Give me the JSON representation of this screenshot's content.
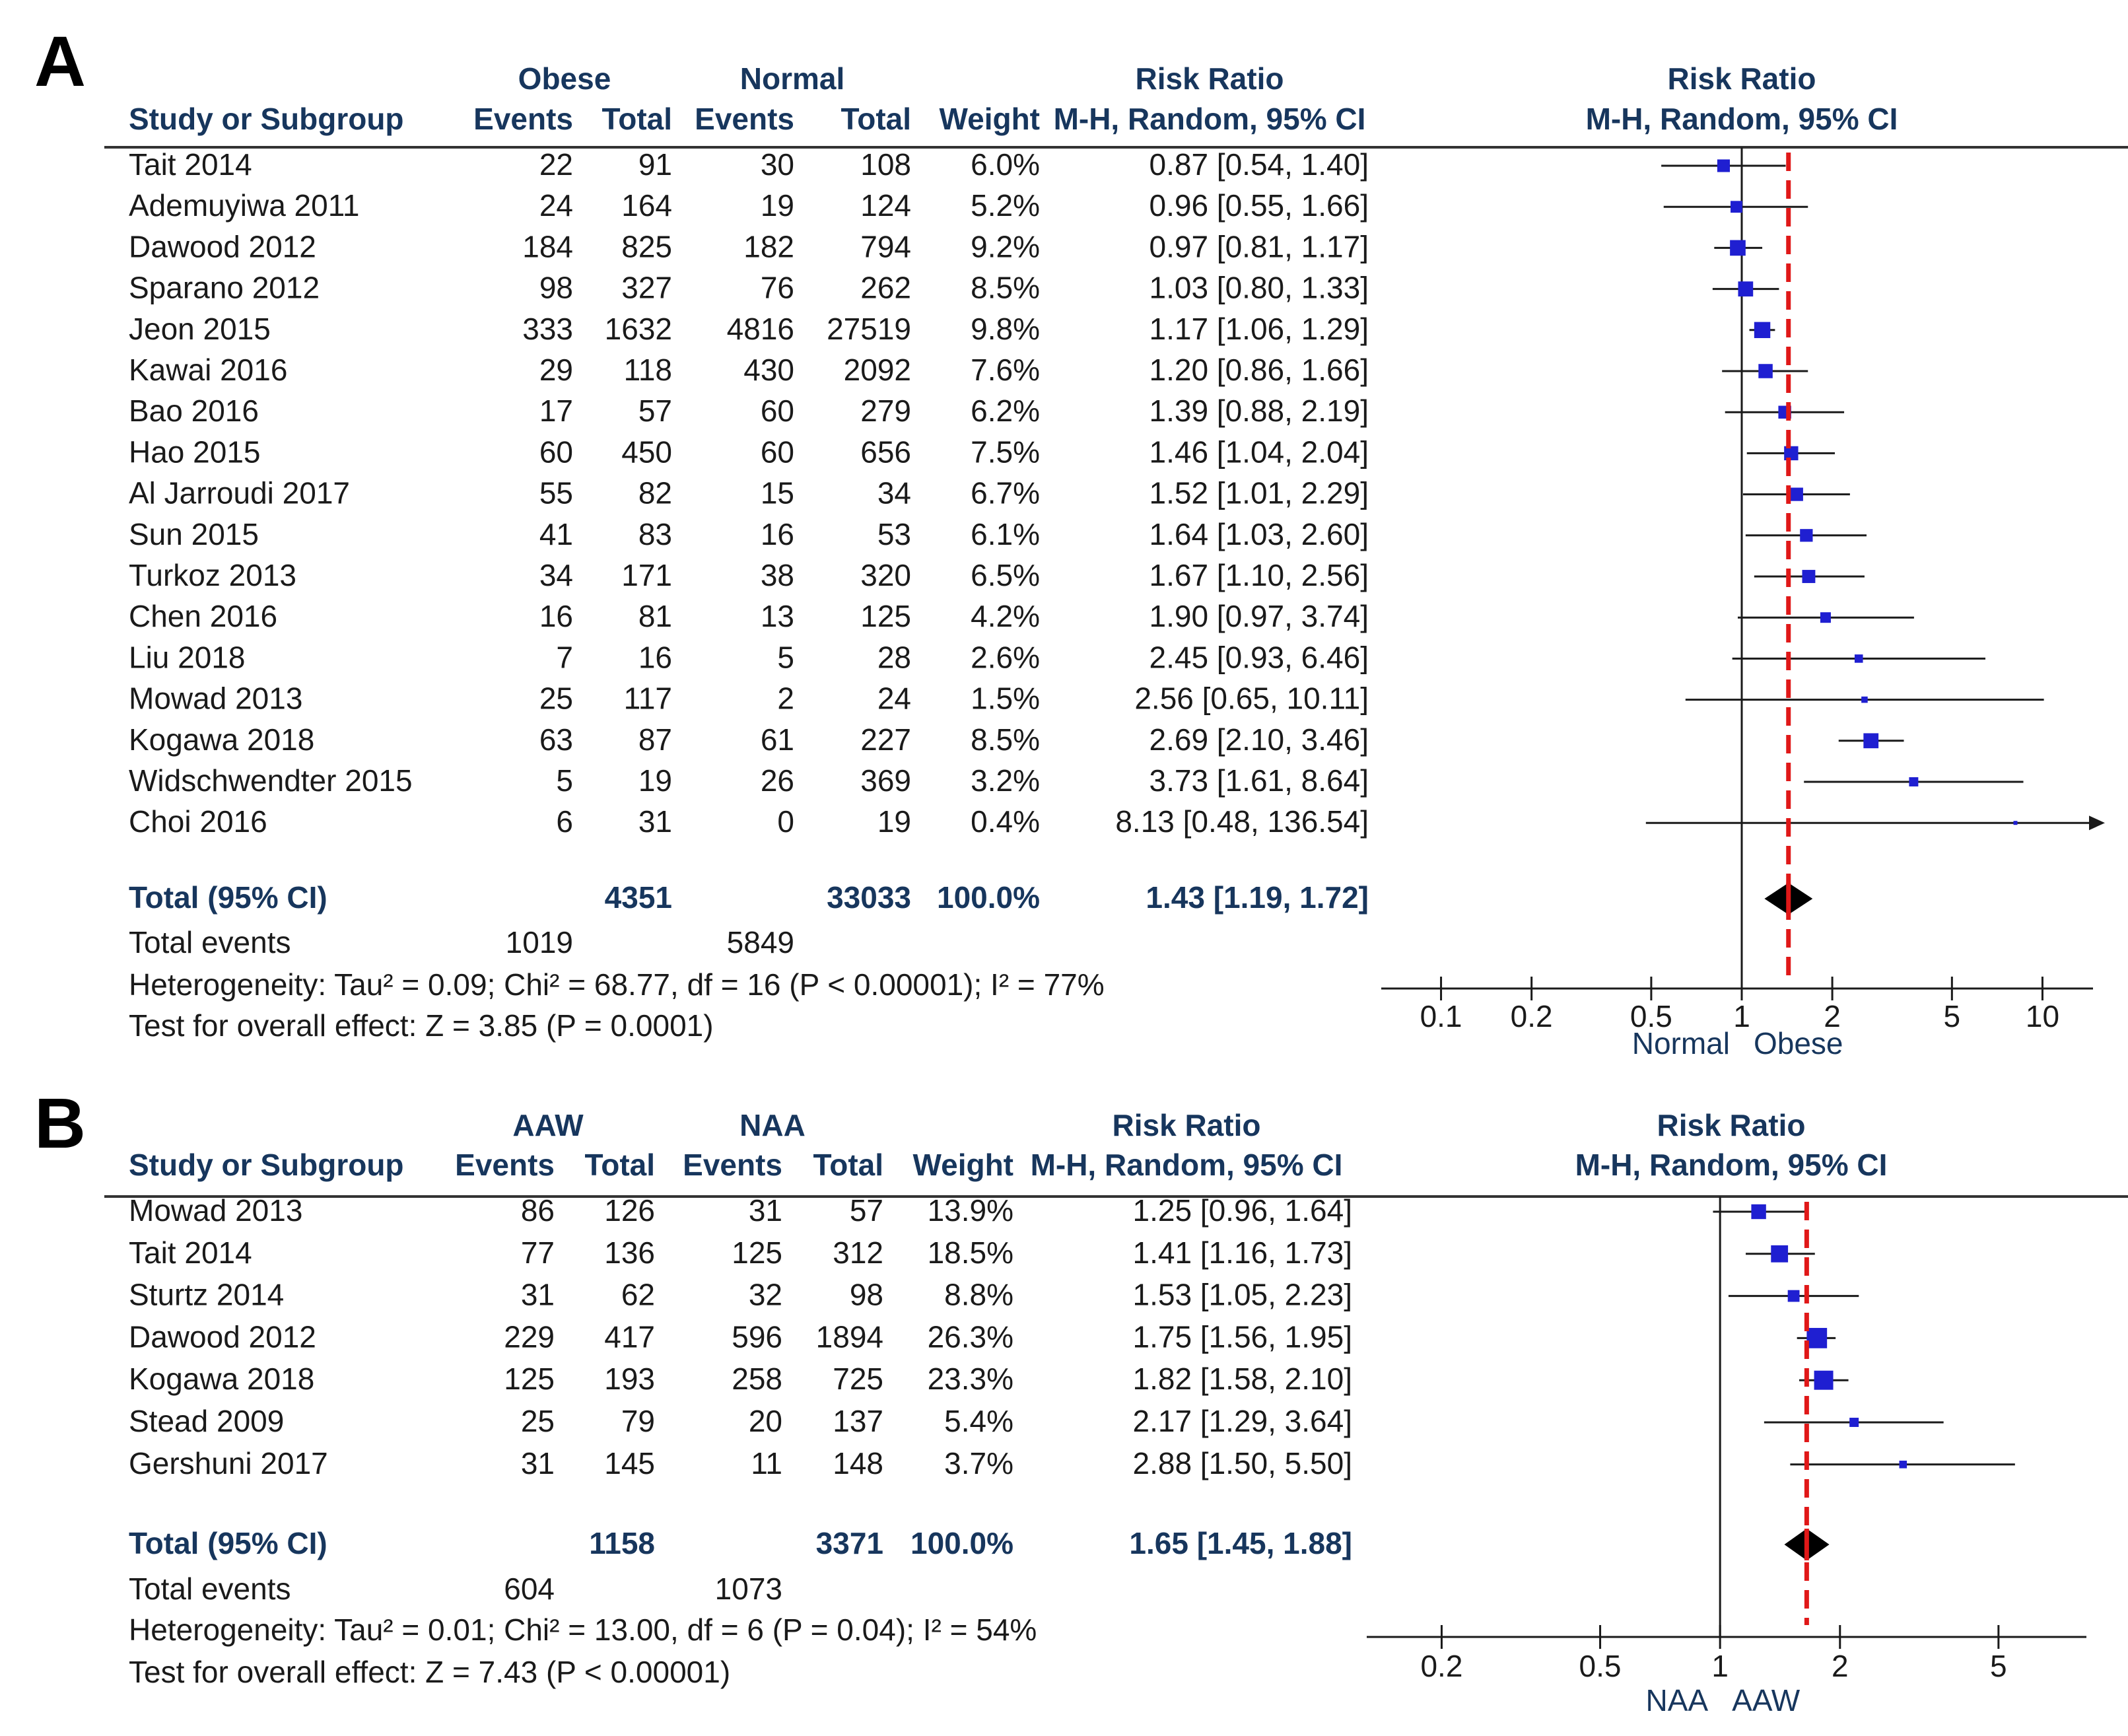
{
  "chart_data": [
    {
      "type": "forest",
      "panel_label": "A",
      "group1_label": "Obese",
      "group2_label": "Normal",
      "col_headers": {
        "study": "Study or Subgroup",
        "events1": "Events",
        "total1": "Total",
        "events2": "Events",
        "total2": "Total",
        "weight": "Weight",
        "rr_title": "Risk Ratio",
        "rr_sub": "M-H, Random, 95% CI"
      },
      "plot_title": "Risk Ratio",
      "plot_sub": "M-H, Random, 95% CI",
      "studies": [
        {
          "name": "Tait 2014",
          "e1": "22",
          "t1": "91",
          "e2": "30",
          "t2": "108",
          "weight": "6.0%",
          "rr_text": "0.87 [0.54, 1.40]",
          "rr": 0.87,
          "lo": 0.54,
          "hi": 1.4,
          "w": 6.0
        },
        {
          "name": "Ademuyiwa 2011",
          "e1": "24",
          "t1": "164",
          "e2": "19",
          "t2": "124",
          "weight": "5.2%",
          "rr_text": "0.96 [0.55, 1.66]",
          "rr": 0.96,
          "lo": 0.55,
          "hi": 1.66,
          "w": 5.2
        },
        {
          "name": "Dawood 2012",
          "e1": "184",
          "t1": "825",
          "e2": "182",
          "t2": "794",
          "weight": "9.2%",
          "rr_text": "0.97 [0.81, 1.17]",
          "rr": 0.97,
          "lo": 0.81,
          "hi": 1.17,
          "w": 9.2
        },
        {
          "name": "Sparano 2012",
          "e1": "98",
          "t1": "327",
          "e2": "76",
          "t2": "262",
          "weight": "8.5%",
          "rr_text": "1.03 [0.80, 1.33]",
          "rr": 1.03,
          "lo": 0.8,
          "hi": 1.33,
          "w": 8.5
        },
        {
          "name": "Jeon 2015",
          "e1": "333",
          "t1": "1632",
          "e2": "4816",
          "t2": "27519",
          "weight": "9.8%",
          "rr_text": "1.17 [1.06, 1.29]",
          "rr": 1.17,
          "lo": 1.06,
          "hi": 1.29,
          "w": 9.8
        },
        {
          "name": "Kawai 2016",
          "e1": "29",
          "t1": "118",
          "e2": "430",
          "t2": "2092",
          "weight": "7.6%",
          "rr_text": "1.20 [0.86, 1.66]",
          "rr": 1.2,
          "lo": 0.86,
          "hi": 1.66,
          "w": 7.6
        },
        {
          "name": "Bao 2016",
          "e1": "17",
          "t1": "57",
          "e2": "60",
          "t2": "279",
          "weight": "6.2%",
          "rr_text": "1.39 [0.88, 2.19]",
          "rr": 1.39,
          "lo": 0.88,
          "hi": 2.19,
          "w": 6.2
        },
        {
          "name": "Hao 2015",
          "e1": "60",
          "t1": "450",
          "e2": "60",
          "t2": "656",
          "weight": "7.5%",
          "rr_text": "1.46 [1.04, 2.04]",
          "rr": 1.46,
          "lo": 1.04,
          "hi": 2.04,
          "w": 7.5
        },
        {
          "name": "Al Jarroudi 2017",
          "e1": "55",
          "t1": "82",
          "e2": "15",
          "t2": "34",
          "weight": "6.7%",
          "rr_text": "1.52 [1.01, 2.29]",
          "rr": 1.52,
          "lo": 1.01,
          "hi": 2.29,
          "w": 6.7
        },
        {
          "name": "Sun 2015",
          "e1": "41",
          "t1": "83",
          "e2": "16",
          "t2": "53",
          "weight": "6.1%",
          "rr_text": "1.64 [1.03, 2.60]",
          "rr": 1.64,
          "lo": 1.03,
          "hi": 2.6,
          "w": 6.1
        },
        {
          "name": "Turkoz 2013",
          "e1": "34",
          "t1": "171",
          "e2": "38",
          "t2": "320",
          "weight": "6.5%",
          "rr_text": "1.67 [1.10, 2.56]",
          "rr": 1.67,
          "lo": 1.1,
          "hi": 2.56,
          "w": 6.5
        },
        {
          "name": "Chen 2016",
          "e1": "16",
          "t1": "81",
          "e2": "13",
          "t2": "125",
          "weight": "4.2%",
          "rr_text": "1.90 [0.97, 3.74]",
          "rr": 1.9,
          "lo": 0.97,
          "hi": 3.74,
          "w": 4.2
        },
        {
          "name": "Liu 2018",
          "e1": "7",
          "t1": "16",
          "e2": "5",
          "t2": "28",
          "weight": "2.6%",
          "rr_text": "2.45 [0.93, 6.46]",
          "rr": 2.45,
          "lo": 0.93,
          "hi": 6.46,
          "w": 2.6
        },
        {
          "name": "Mowad 2013",
          "e1": "25",
          "t1": "117",
          "e2": "2",
          "t2": "24",
          "weight": "1.5%",
          "rr_text": "2.56 [0.65, 10.11]",
          "rr": 2.56,
          "lo": 0.65,
          "hi": 10.11,
          "w": 1.5
        },
        {
          "name": "Kogawa 2018",
          "e1": "63",
          "t1": "87",
          "e2": "61",
          "t2": "227",
          "weight": "8.5%",
          "rr_text": "2.69 [2.10, 3.46]",
          "rr": 2.69,
          "lo": 2.1,
          "hi": 3.46,
          "w": 8.5
        },
        {
          "name": "Widschwendter 2015",
          "e1": "5",
          "t1": "19",
          "e2": "26",
          "t2": "369",
          "weight": "3.2%",
          "rr_text": "3.73 [1.61, 8.64]",
          "rr": 3.73,
          "lo": 1.61,
          "hi": 8.64,
          "w": 3.2
        },
        {
          "name": "Choi 2016",
          "e1": "6",
          "t1": "31",
          "e2": "0",
          "t2": "19",
          "weight": "0.4%",
          "rr_text": "8.13 [0.48, 136.54]",
          "rr": 8.13,
          "lo": 0.48,
          "hi": 136.54,
          "w": 0.4
        }
      ],
      "total": {
        "label": "Total (95% CI)",
        "t1": "4351",
        "t2": "33033",
        "weight": "100.0%",
        "rr_text": "1.43 [1.19, 1.72]",
        "rr": 1.43,
        "lo": 1.19,
        "hi": 1.72
      },
      "total_events": {
        "label": "Total events",
        "e1": "1019",
        "e2": "5849"
      },
      "heterogeneity": "Heterogeneity: Tau² = 0.09; Chi² = 68.77, df = 16 (P < 0.00001); I² = 77%",
      "overall_effect": "Test for overall effect: Z = 3.85 (P = 0.0001)",
      "x_scale": "log",
      "x_range": [
        0.07,
        14
      ],
      "ticks": [
        {
          "v": 0.1,
          "label": "0.1"
        },
        {
          "v": 0.2,
          "label": "0.2"
        },
        {
          "v": 0.5,
          "label": "0.5"
        },
        {
          "v": 1,
          "label": "1"
        },
        {
          "v": 2,
          "label": "2"
        },
        {
          "v": 5,
          "label": "5"
        },
        {
          "v": 10,
          "label": "10"
        }
      ],
      "favours_left": "Normal",
      "favours_right": "Obese",
      "colors": {
        "marker": "#1f1fd1",
        "line": "#1a1a1a",
        "dash": "#e01818",
        "diamond": "#000000"
      }
    },
    {
      "type": "forest",
      "panel_label": "B",
      "group1_label": "AAW",
      "group2_label": "NAA",
      "col_headers": {
        "study": "Study or Subgroup",
        "events1": "Events",
        "total1": "Total",
        "events2": "Events",
        "total2": "Total",
        "weight": "Weight",
        "rr_title": "Risk Ratio",
        "rr_sub": "M-H, Random, 95% CI"
      },
      "plot_title": "Risk Ratio",
      "plot_sub": "M-H, Random, 95% CI",
      "studies": [
        {
          "name": "Mowad 2013",
          "e1": "86",
          "t1": "126",
          "e2": "31",
          "t2": "57",
          "weight": "13.9%",
          "rr_text": "1.25 [0.96, 1.64]",
          "rr": 1.25,
          "lo": 0.96,
          "hi": 1.64,
          "w": 13.9
        },
        {
          "name": "Tait 2014",
          "e1": "77",
          "t1": "136",
          "e2": "125",
          "t2": "312",
          "weight": "18.5%",
          "rr_text": "1.41 [1.16, 1.73]",
          "rr": 1.41,
          "lo": 1.16,
          "hi": 1.73,
          "w": 18.5
        },
        {
          "name": "Sturtz 2014",
          "e1": "31",
          "t1": "62",
          "e2": "32",
          "t2": "98",
          "weight": "8.8%",
          "rr_text": "1.53 [1.05, 2.23]",
          "rr": 1.53,
          "lo": 1.05,
          "hi": 2.23,
          "w": 8.8
        },
        {
          "name": "Dawood 2012",
          "e1": "229",
          "t1": "417",
          "e2": "596",
          "t2": "1894",
          "weight": "26.3%",
          "rr_text": "1.75 [1.56, 1.95]",
          "rr": 1.75,
          "lo": 1.56,
          "hi": 1.95,
          "w": 26.3
        },
        {
          "name": "Kogawa 2018",
          "e1": "125",
          "t1": "193",
          "e2": "258",
          "t2": "725",
          "weight": "23.3%",
          "rr_text": "1.82 [1.58, 2.10]",
          "rr": 1.82,
          "lo": 1.58,
          "hi": 2.1,
          "w": 23.3
        },
        {
          "name": "Stead 2009",
          "e1": "25",
          "t1": "79",
          "e2": "20",
          "t2": "137",
          "weight": "5.4%",
          "rr_text": "2.17 [1.29, 3.64]",
          "rr": 2.17,
          "lo": 1.29,
          "hi": 3.64,
          "w": 5.4
        },
        {
          "name": "Gershuni 2017",
          "e1": "31",
          "t1": "145",
          "e2": "11",
          "t2": "148",
          "weight": "3.7%",
          "rr_text": "2.88 [1.50, 5.50]",
          "rr": 2.88,
          "lo": 1.5,
          "hi": 5.5,
          "w": 3.7
        }
      ],
      "total": {
        "label": "Total (95% CI)",
        "t1": "1158",
        "t2": "3371",
        "weight": "100.0%",
        "rr_text": "1.65 [1.45, 1.88]",
        "rr": 1.65,
        "lo": 1.45,
        "hi": 1.88
      },
      "total_events": {
        "label": "Total events",
        "e1": "604",
        "e2": "1073"
      },
      "heterogeneity": "Heterogeneity: Tau² = 0.01; Chi² = 13.00, df = 6 (P = 0.04); I² = 54%",
      "overall_effect": "Test for overall effect: Z = 7.43 (P < 0.00001)",
      "x_scale": "log",
      "x_range": [
        0.14,
        8
      ],
      "ticks": [
        {
          "v": 0.2,
          "label": "0.2"
        },
        {
          "v": 0.5,
          "label": "0.5"
        },
        {
          "v": 1,
          "label": "1"
        },
        {
          "v": 2,
          "label": "2"
        },
        {
          "v": 5,
          "label": "5"
        }
      ],
      "favours_left": "NAA",
      "favours_right": "AAW",
      "colors": {
        "marker": "#1f1fd1",
        "line": "#1a1a1a",
        "dash": "#e01818",
        "diamond": "#000000"
      }
    }
  ]
}
